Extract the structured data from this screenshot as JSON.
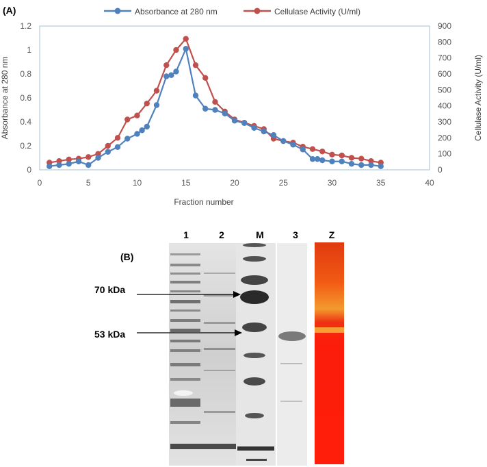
{
  "panel_a_label": "(A)",
  "panel_b_label": "(B)",
  "chart_data": {
    "type": "line",
    "xlabel": "Fraction number",
    "ylabel": "Absorbance at 280 nm",
    "y2label": "Cellulase Activity (U/ml)",
    "xlim": [
      0,
      40
    ],
    "ylim": [
      0,
      1.2
    ],
    "y2lim": [
      0,
      900
    ],
    "x_ticks": [
      0,
      5,
      10,
      15,
      20,
      25,
      30,
      35,
      40
    ],
    "y_ticks": [
      0,
      0.2,
      0.4,
      0.6,
      0.8,
      1,
      1.2
    ],
    "y2_ticks": [
      0,
      100,
      200,
      300,
      400,
      500,
      600,
      700,
      800,
      900
    ],
    "legend_position": "top",
    "grid": false,
    "series": [
      {
        "name": "Absorbance at 280 nm",
        "axis": "left",
        "color": "#4f81bd",
        "x": [
          1,
          2,
          3,
          4,
          5,
          6,
          7,
          8,
          9,
          10,
          10.5,
          11,
          12,
          13,
          13.5,
          14,
          15,
          16,
          17,
          18,
          19,
          20,
          21,
          22,
          23,
          24,
          25,
          26,
          27,
          28,
          28.5,
          29,
          30,
          31,
          32,
          33,
          34,
          35
        ],
        "y": [
          0.03,
          0.04,
          0.05,
          0.07,
          0.04,
          0.1,
          0.15,
          0.19,
          0.26,
          0.3,
          0.33,
          0.36,
          0.54,
          0.78,
          0.79,
          0.82,
          1.01,
          0.62,
          0.51,
          0.5,
          0.47,
          0.41,
          0.39,
          0.35,
          0.32,
          0.29,
          0.24,
          0.21,
          0.17,
          0.09,
          0.09,
          0.08,
          0.07,
          0.07,
          0.05,
          0.04,
          0.04,
          0.03
        ]
      },
      {
        "name": "Cellulase Activity (U/ml)",
        "axis": "right",
        "color": "#c0504d",
        "x": [
          1,
          2,
          3,
          4,
          5,
          6,
          7,
          8,
          9,
          10,
          11,
          12,
          13,
          14,
          15,
          16,
          17,
          18,
          19,
          20,
          21,
          22,
          23,
          24,
          25,
          26,
          27,
          28,
          29,
          30,
          31,
          32,
          33,
          34,
          35
        ],
        "y": [
          45,
          55,
          65,
          70,
          80,
          100,
          150,
          200,
          315,
          340,
          415,
          495,
          655,
          750,
          820,
          655,
          575,
          425,
          365,
          315,
          295,
          275,
          255,
          195,
          180,
          170,
          145,
          130,
          115,
          95,
          90,
          75,
          70,
          55,
          45
        ]
      }
    ]
  },
  "gel": {
    "lanes": [
      {
        "label": "1",
        "kind": "lysate"
      },
      {
        "label": "2",
        "kind": "lysate"
      },
      {
        "label": "M",
        "kind": "marker"
      },
      {
        "label": "3",
        "kind": "purified"
      },
      {
        "label": "Z",
        "kind": "zymogram"
      }
    ],
    "markers": [
      {
        "label": "70 kDa"
      },
      {
        "label": "53 kDa"
      }
    ]
  }
}
